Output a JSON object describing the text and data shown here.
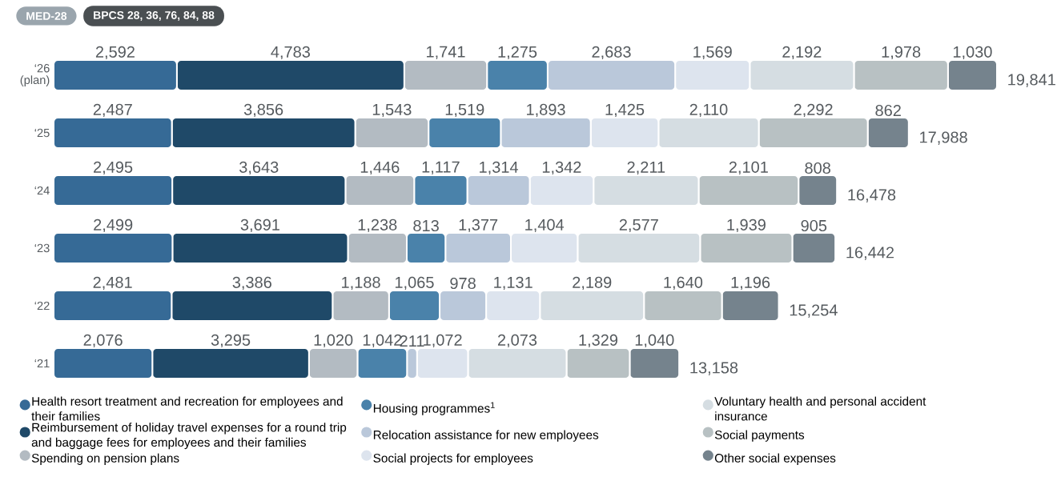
{
  "chart_data": {
    "type": "bar",
    "orientation": "horizontal",
    "stacked": true,
    "categories": [
      "‘26 (plan)",
      "‘25",
      "‘24",
      "‘23",
      "‘22",
      "‘21"
    ],
    "series": [
      {
        "name": "Health resort treatment and recreation for employees and their families",
        "color": "#366a96",
        "values": [
          2592,
          2487,
          2495,
          2499,
          2481,
          2076
        ],
        "value_labels": [
          "2,592",
          "2,487",
          "2,495",
          "2,499",
          "2,481",
          "2,076"
        ]
      },
      {
        "name": "Reimbursement of holiday travel expenses for a round trip and baggage fees for employees and their families",
        "color": "#1f4968",
        "values": [
          4783,
          3856,
          3643,
          3691,
          3386,
          3295
        ],
        "value_labels": [
          "4,783",
          "3,856",
          "3,643",
          "3,691",
          "3,386",
          "3,295"
        ]
      },
      {
        "name": "Spending on pension plans",
        "color": "#b3bbc2",
        "values": [
          1741,
          1543,
          1446,
          1238,
          1188,
          1020
        ],
        "value_labels": [
          "1,741",
          "1,543",
          "1,446",
          "1,238",
          "1,188",
          "1,020"
        ]
      },
      {
        "name": "Housing programmes$^{1}$",
        "color": "#4a82aa",
        "values": [
          1275,
          1519,
          1117,
          813,
          1065,
          1042
        ],
        "value_labels": [
          "1,275",
          "1,519",
          "1,117",
          "813",
          "1,065",
          "1,042"
        ]
      },
      {
        "name": "Relocation assistance for new employees",
        "color": "#bac8da",
        "values": [
          2683,
          1893,
          1314,
          1377,
          978,
          211
        ],
        "value_labels": [
          "2,683",
          "1,893",
          "1,314",
          "1,377",
          "978",
          "211"
        ]
      },
      {
        "name": "Social projects for employees",
        "color": "#dde4ee",
        "values": [
          1569,
          1425,
          1342,
          1404,
          1131,
          1072
        ],
        "value_labels": [
          "1,569",
          "1,425",
          "1,342",
          "1,404",
          "1,131",
          "1,072"
        ]
      },
      {
        "name": "Voluntary health and personal accident insurance",
        "color": "#d5dde2",
        "values": [
          2192,
          2110,
          2211,
          2577,
          2189,
          2073
        ],
        "value_labels": [
          "2,192",
          "2,110",
          "2,211",
          "2,577",
          "2,189",
          "2,073"
        ]
      },
      {
        "name": "Social payments",
        "color": "#b8c1c3",
        "values": [
          1978,
          2292,
          2101,
          1939,
          1640,
          1329
        ],
        "value_labels": [
          "1,978",
          "2,292",
          "2,101",
          "1,939",
          "1,640",
          "1,329"
        ]
      },
      {
        "name": "Other social expenses",
        "color": "#75838d",
        "values": [
          1030,
          862,
          808,
          905,
          1196,
          1040
        ],
        "value_labels": [
          "1,030",
          "862",
          "808",
          "905",
          "1,196",
          "1,040"
        ]
      }
    ],
    "totals": [
      "19,841",
      "17,988",
      "16,478",
      "16,442",
      "15,254",
      "13,158"
    ],
    "annotations": [
      "MED-28",
      "BPCS 28, 36, 76, 84, 88"
    ],
    "legend": "bottom"
  }
}
